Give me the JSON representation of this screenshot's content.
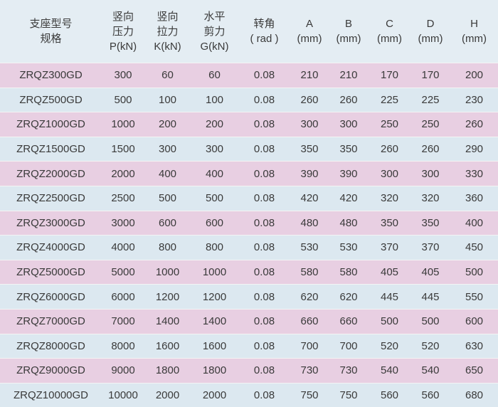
{
  "table": {
    "header": [
      [
        "支座型号",
        "规格"
      ],
      [
        "竖向",
        "压力",
        "P(kN)"
      ],
      [
        "竖向",
        "拉力",
        "K(kN)"
      ],
      [
        "水平",
        "剪力",
        "G(kN)"
      ],
      [
        "转角",
        "( rad )"
      ],
      [
        "A",
        "(mm)"
      ],
      [
        "B",
        "(mm)"
      ],
      [
        "C",
        "(mm)"
      ],
      [
        "D",
        "(mm)"
      ],
      [
        "H",
        "(mm)"
      ]
    ],
    "rows": [
      [
        "ZRQZ300GD",
        300,
        60,
        60,
        0.08,
        210,
        210,
        170,
        170,
        200
      ],
      [
        "ZRQZ500GD",
        500,
        100,
        100,
        0.08,
        260,
        260,
        225,
        225,
        230
      ],
      [
        "ZRQZ1000GD",
        1000,
        200,
        200,
        0.08,
        300,
        300,
        250,
        250,
        260
      ],
      [
        "ZRQZ1500GD",
        1500,
        300,
        300,
        0.08,
        350,
        350,
        260,
        260,
        290
      ],
      [
        "ZRQZ2000GD",
        2000,
        400,
        400,
        0.08,
        390,
        390,
        300,
        300,
        330
      ],
      [
        "ZRQZ2500GD",
        2500,
        500,
        500,
        0.08,
        420,
        420,
        320,
        320,
        360
      ],
      [
        "ZRQZ3000GD",
        3000,
        600,
        600,
        0.08,
        480,
        480,
        350,
        350,
        400
      ],
      [
        "ZRQZ4000GD",
        4000,
        800,
        800,
        0.08,
        530,
        530,
        370,
        370,
        450
      ],
      [
        "ZRQZ5000GD",
        5000,
        1000,
        1000,
        0.08,
        580,
        580,
        405,
        405,
        500
      ],
      [
        "ZRQZ6000GD",
        6000,
        1200,
        1200,
        0.08,
        620,
        620,
        445,
        445,
        550
      ],
      [
        "ZRQZ7000GD",
        7000,
        1400,
        1400,
        0.08,
        660,
        660,
        500,
        500,
        600
      ],
      [
        "ZRQZ8000GD",
        8000,
        1600,
        1600,
        0.08,
        700,
        700,
        520,
        520,
        630
      ],
      [
        "ZRQZ9000GD",
        9000,
        1800,
        1800,
        0.08,
        730,
        730,
        540,
        540,
        650
      ],
      [
        "ZRQZ10000GD",
        10000,
        2000,
        2000,
        0.08,
        750,
        750,
        560,
        560,
        680
      ]
    ]
  }
}
